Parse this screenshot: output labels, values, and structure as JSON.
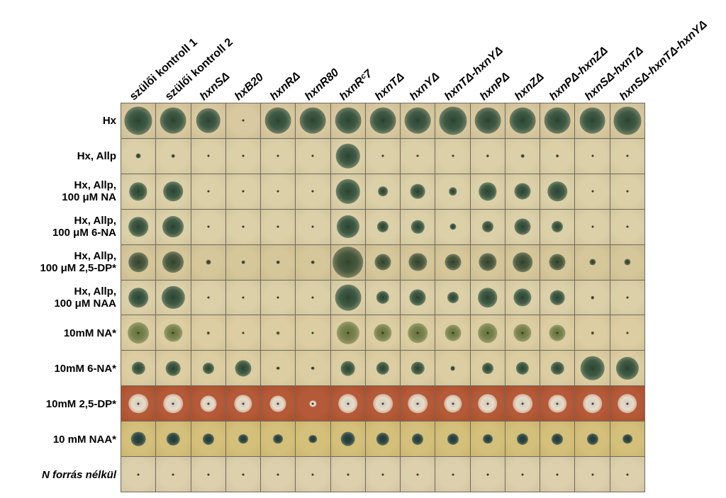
{
  "columns": [
    {
      "label": "szülői kontroll 1",
      "italic": false
    },
    {
      "label": "szülői kontroll 2",
      "italic": false
    },
    {
      "label": "hxnSΔ",
      "italic": true
    },
    {
      "label": "hxB20",
      "italic": true
    },
    {
      "label": "hxnRΔ",
      "italic": true
    },
    {
      "label": "hxnR80",
      "italic": true
    },
    {
      "label": "hxnRᶜ7",
      "italic": true
    },
    {
      "label": "hxnTΔ",
      "italic": true
    },
    {
      "label": "hxnYΔ",
      "italic": true
    },
    {
      "label": "hxnTΔ-hxnYΔ",
      "italic": true
    },
    {
      "label": "hxnPΔ",
      "italic": true
    },
    {
      "label": "hxnZΔ",
      "italic": true
    },
    {
      "label": "hxnPΔ-hxnZΔ",
      "italic": true
    },
    {
      "label": "hxnSΔ-hxnTΔ",
      "italic": true
    },
    {
      "label": "hxnSΔ-hxnTΔ-hxnYΔ",
      "italic": true
    }
  ],
  "rows": [
    {
      "lines": [
        "Hx"
      ],
      "italic": false,
      "bg": "#d9c9a0",
      "colony": "#3f5a45",
      "growth": [
        0.85,
        0.8,
        0.75,
        0.05,
        0.8,
        0.8,
        0.8,
        0.8,
        0.8,
        0.85,
        0.8,
        0.8,
        0.8,
        0.8,
        0.85
      ]
    },
    {
      "lines": [
        "Hx, Allp"
      ],
      "italic": false,
      "bg": "#dcd0a8",
      "colony": "#3f5a45",
      "growth": [
        0.15,
        0.1,
        0.05,
        0.05,
        0.05,
        0.05,
        0.75,
        0.05,
        0.05,
        0.05,
        0.08,
        0.1,
        0.08,
        0.05,
        0.05
      ]
    },
    {
      "lines": [
        "Hx, Allp,",
        "100 μM NA"
      ],
      "italic": false,
      "bg": "#dcd0a8",
      "colony": "#3f5a45",
      "growth": [
        0.55,
        0.6,
        0.05,
        0.05,
        0.05,
        0.05,
        0.75,
        0.3,
        0.45,
        0.25,
        0.55,
        0.5,
        0.6,
        0.05,
        0.05
      ]
    },
    {
      "lines": [
        "Hx, Allp,",
        "100 μM 6-NA"
      ],
      "italic": false,
      "bg": "#dcd0a8",
      "colony": "#3f5a45",
      "growth": [
        0.6,
        0.65,
        0.05,
        0.05,
        0.05,
        0.05,
        0.7,
        0.35,
        0.4,
        0.2,
        0.35,
        0.5,
        0.35,
        0.05,
        0.05
      ]
    },
    {
      "lines": [
        "Hx, Allp,",
        "100 μM 2,5-DP*"
      ],
      "italic": false,
      "bg": "#d6c79b",
      "colony": "#4a5a40",
      "growth": [
        0.6,
        0.65,
        0.15,
        0.1,
        0.1,
        0.1,
        0.95,
        0.5,
        0.55,
        0.5,
        0.55,
        0.6,
        0.5,
        0.2,
        0.2
      ]
    },
    {
      "lines": [
        "Hx, Allp,",
        "100 μM NAA"
      ],
      "italic": false,
      "bg": "#dcd0a8",
      "colony": "#3f5a45",
      "growth": [
        0.6,
        0.7,
        0.05,
        0.05,
        0.05,
        0.05,
        0.8,
        0.4,
        0.5,
        0.35,
        0.6,
        0.55,
        0.45,
        0.1,
        0.05
      ]
    },
    {
      "lines": [
        "10mM NA*"
      ],
      "italic": false,
      "bg": "#dccea2",
      "colony": "#7a8450",
      "growth": [
        0.65,
        0.55,
        0.1,
        0.05,
        0.1,
        0.05,
        0.7,
        0.55,
        0.6,
        0.5,
        0.6,
        0.55,
        0.5,
        0.1,
        0.05
      ]
    },
    {
      "lines": [
        "10mM 6-NA*"
      ],
      "italic": false,
      "bg": "#dccea2",
      "colony": "#3f5a45",
      "growth": [
        0.4,
        0.45,
        0.35,
        0.5,
        0.1,
        0.1,
        0.45,
        0.4,
        0.4,
        0.15,
        0.35,
        0.4,
        0.4,
        0.75,
        0.7
      ]
    },
    {
      "lines": [
        "10mM 2,5-DP*"
      ],
      "italic": false,
      "bg": "#b55a38",
      "colony": "#e6dccb",
      "growth": [
        0.6,
        0.6,
        0.5,
        0.55,
        0.5,
        0.2,
        0.6,
        0.6,
        0.6,
        0.55,
        0.6,
        0.6,
        0.55,
        0.6,
        0.6
      ]
    },
    {
      "lines": [
        "10 mM NAA*"
      ],
      "italic": false,
      "bg": "#d4c07a",
      "colony": "#2f4a48",
      "growth": [
        0.45,
        0.4,
        0.35,
        0.3,
        0.3,
        0.25,
        0.45,
        0.4,
        0.35,
        0.35,
        0.3,
        0.35,
        0.35,
        0.35,
        0.3
      ]
    },
    {
      "lines": [
        "N forrás nélkül"
      ],
      "italic": true,
      "bg": "#ddd0ad",
      "colony": "#6b6b5a",
      "growth": [
        0.04,
        0.04,
        0.04,
        0.04,
        0.04,
        0.04,
        0.04,
        0.04,
        0.04,
        0.04,
        0.04,
        0.04,
        0.04,
        0.04,
        0.04
      ]
    }
  ]
}
